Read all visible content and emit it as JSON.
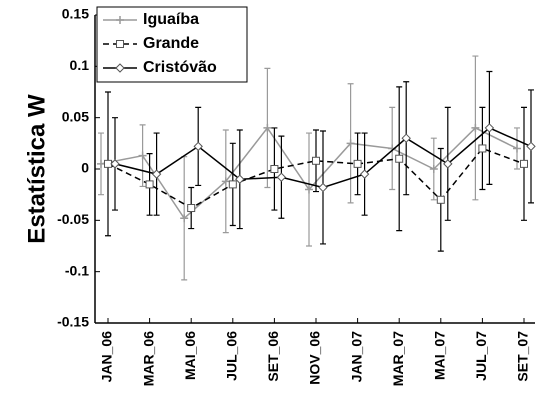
{
  "chart_data": {
    "type": "line",
    "ylabel": "Estatística W",
    "categories": [
      "JAN_06",
      "MAR_06",
      "MAI_06",
      "JUL_06",
      "SET_06",
      "NOV_06",
      "JAN_07",
      "MAR_07",
      "MAI_07",
      "JUL_07",
      "SET_07"
    ],
    "series": [
      {
        "name": "Iguaíba",
        "color": "#9a9a9a",
        "linestyle": "solid",
        "marker": "plus",
        "values": [
          0.005,
          0.013,
          -0.048,
          -0.012,
          0.04,
          -0.02,
          0.025,
          0.02,
          0.0,
          0.04,
          0.02
        ],
        "errors": [
          0.03,
          0.03,
          0.06,
          0.05,
          0.058,
          0.055,
          0.058,
          0.04,
          0.03,
          0.07,
          0.02
        ]
      },
      {
        "name": "Grande",
        "color": "#000000",
        "linestyle": "dashed",
        "marker": "square",
        "values": [
          0.005,
          -0.015,
          -0.038,
          -0.015,
          0.0,
          0.008,
          0.005,
          0.01,
          -0.03,
          0.02,
          0.005
        ],
        "errors": [
          0.07,
          0.03,
          0.02,
          0.04,
          0.04,
          0.03,
          0.03,
          0.07,
          0.05,
          0.04,
          0.055
        ]
      },
      {
        "name": "Cristóvão",
        "color": "#000000",
        "linestyle": "solid",
        "marker": "diamond",
        "values": [
          0.005,
          -0.005,
          0.022,
          -0.01,
          -0.008,
          -0.018,
          -0.005,
          0.03,
          0.005,
          0.04,
          0.022
        ],
        "errors": [
          0.045,
          0.04,
          0.038,
          0.048,
          0.04,
          0.055,
          0.04,
          0.055,
          0.055,
          0.055,
          0.055
        ]
      }
    ],
    "ylim": [
      -0.15,
      0.15
    ],
    "yticks": [
      -0.15,
      -0.1,
      -0.05,
      0,
      0.05,
      0.1,
      0.15
    ],
    "legend": "upper-left"
  }
}
